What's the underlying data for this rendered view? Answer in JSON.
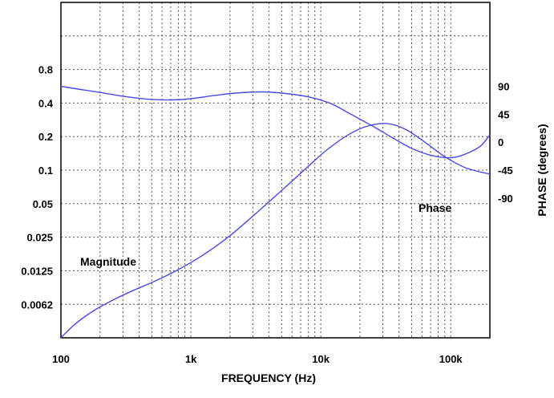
{
  "chart_data": {
    "type": "line",
    "xlabel": "FREQUENCY (Hz)",
    "ylabel_right": "PHASE (degrees)",
    "x_scale": "log",
    "x_ticks": [
      {
        "value": 100,
        "label": "100"
      },
      {
        "value": 1000,
        "label": "1k"
      },
      {
        "value": 10000,
        "label": "10k"
      },
      {
        "value": 100000,
        "label": "100k"
      }
    ],
    "xlim": [
      100,
      200000
    ],
    "y_left": {
      "scale": "log2",
      "ticks": [
        {
          "value": 0.8,
          "label": "0.8"
        },
        {
          "value": 0.4,
          "label": "0.4"
        },
        {
          "value": 0.2,
          "label": "0.2"
        },
        {
          "value": 0.1,
          "label": "0.1"
        },
        {
          "value": 0.05,
          "label": "0.05"
        },
        {
          "value": 0.025,
          "label": "0.025"
        },
        {
          "value": 0.0125,
          "label": "0.0125"
        },
        {
          "value": 0.0062,
          "label": "0.0062"
        }
      ],
      "range": [
        0.003125,
        3.2
      ]
    },
    "y_right": {
      "ticks": [
        {
          "value": 90,
          "label": "90"
        },
        {
          "value": 45,
          "label": "45"
        },
        {
          "value": 0,
          "label": "0"
        },
        {
          "value": -45,
          "label": "-45"
        },
        {
          "value": -90,
          "label": "-90"
        }
      ],
      "range": [
        -315,
        225
      ]
    },
    "grid": true,
    "series": [
      {
        "name": "Magnitude",
        "axis": "left",
        "color": "#4a4ae8",
        "x": [
          100,
          130,
          180,
          250,
          350,
          500,
          700,
          1000,
          1400,
          2000,
          2800,
          4000,
          5600,
          8000,
          11000,
          16000,
          22000,
          32000,
          45000,
          65000,
          90000,
          130000,
          200000
        ],
        "y": [
          0.0031,
          0.0042,
          0.0055,
          0.0068,
          0.0082,
          0.0098,
          0.0118,
          0.0148,
          0.019,
          0.0258,
          0.036,
          0.052,
          0.074,
          0.108,
          0.15,
          0.205,
          0.245,
          0.262,
          0.232,
          0.174,
          0.132,
          0.105,
          0.092
        ]
      },
      {
        "name": "Phase",
        "axis": "right",
        "color": "#4a4ae8",
        "x": [
          100,
          150,
          200,
          300,
          450,
          700,
          1000,
          1500,
          2200,
          3500,
          5000,
          8000,
          12000,
          17000,
          25000,
          35000,
          50000,
          70000,
          100000,
          130000,
          170000,
          200000
        ],
        "y": [
          90,
          84,
          80,
          74,
          69.5,
          68,
          70,
          75,
          79,
          81,
          79,
          73,
          62,
          45,
          26,
          8,
          -10,
          -21,
          -25,
          -19,
          -6,
          12
        ]
      }
    ],
    "annotations": [
      {
        "text": "Magnitude",
        "series": "Magnitude"
      },
      {
        "text": "Phase",
        "series": "Phase"
      }
    ]
  }
}
